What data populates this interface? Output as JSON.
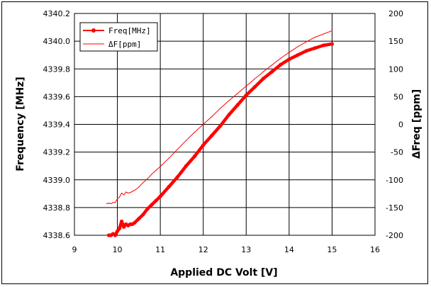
{
  "chart_data": {
    "type": "line",
    "xlabel": "Applied DC Volt [V]",
    "ylabel_left": "Frequency [MHz]",
    "ylabel_right": "ΔFreq [ppm]",
    "xlim": [
      9,
      16
    ],
    "ylim_left": [
      4338.6,
      4340.2
    ],
    "ylim_right": [
      -200,
      200
    ],
    "x_ticks": [
      "9",
      "10",
      "11",
      "12",
      "13",
      "14",
      "15",
      "16"
    ],
    "y_left_ticks": [
      "4338.6",
      "4338.8",
      "4339.0",
      "4339.2",
      "4339.4",
      "4339.6",
      "4339.8",
      "4340.0",
      "4340.2"
    ],
    "y_right_ticks": [
      "-200",
      "-150",
      "-100",
      "-50",
      "0",
      "50",
      "100",
      "150",
      "200"
    ],
    "grid": true,
    "legend_position": "top-left",
    "series": [
      {
        "name": "Freq[MHz]",
        "axis": "left",
        "color": "#ff0000",
        "style": "thick-marker",
        "x": [
          9.8,
          9.85,
          9.9,
          9.95,
          10.0,
          10.05,
          10.1,
          10.15,
          10.2,
          10.25,
          10.3,
          10.35,
          10.4,
          10.5,
          10.6,
          10.7,
          10.8,
          10.9,
          11.0,
          11.2,
          11.4,
          11.6,
          11.8,
          12.0,
          12.2,
          12.4,
          12.6,
          12.8,
          13.0,
          13.2,
          13.4,
          13.6,
          13.8,
          14.0,
          14.2,
          14.4,
          14.6,
          14.8,
          15.0
        ],
        "y": [
          4338.6,
          4338.6,
          4338.61,
          4338.6,
          4338.63,
          4338.65,
          4338.7,
          4338.66,
          4338.68,
          4338.67,
          4338.68,
          4338.68,
          4338.69,
          4338.72,
          4338.75,
          4338.79,
          4338.82,
          4338.85,
          4338.88,
          4338.95,
          4339.02,
          4339.1,
          4339.17,
          4339.25,
          4339.32,
          4339.39,
          4339.47,
          4339.54,
          4339.61,
          4339.67,
          4339.73,
          4339.78,
          4339.83,
          4339.87,
          4339.9,
          4339.93,
          4339.95,
          4339.97,
          4339.98
        ]
      },
      {
        "name": "ΔF[ppm]",
        "axis": "right",
        "color": "#ff0000",
        "style": "thin-line",
        "x": [
          9.75,
          9.8,
          9.85,
          9.9,
          9.95,
          10.0,
          10.05,
          10.1,
          10.15,
          10.2,
          10.25,
          10.3,
          10.35,
          10.4,
          10.5,
          10.6,
          10.7,
          10.8,
          10.9,
          11.0,
          11.2,
          11.4,
          11.6,
          11.8,
          12.0,
          12.2,
          12.4,
          12.6,
          12.8,
          13.0,
          13.2,
          13.4,
          13.6,
          13.8,
          14.0,
          14.2,
          14.4,
          14.6,
          14.8,
          15.0
        ],
        "y": [
          -143,
          -142,
          -143,
          -141,
          -141,
          -134,
          -131,
          -124,
          -127,
          -122,
          -124,
          -123,
          -121,
          -119,
          -113,
          -105,
          -98,
          -90,
          -83,
          -76,
          -61,
          -45,
          -29,
          -14,
          0,
          14,
          29,
          43,
          56,
          69,
          82,
          95,
          107,
          119,
          130,
          140,
          149,
          157,
          163,
          169
        ]
      }
    ]
  }
}
